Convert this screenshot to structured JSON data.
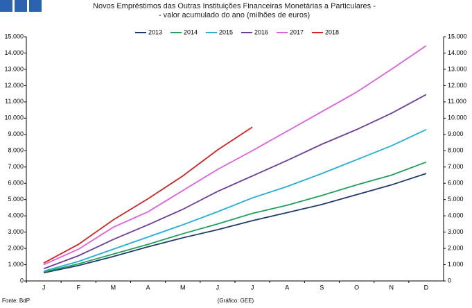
{
  "chart_data": {
    "type": "line",
    "title": "Novos Empréstimos das Outras Instituições Financeiras Monetárias a Particulares -",
    "subtitle": "- valor acumulado do ano (milhões de euros)",
    "source": "Fonte: BdP",
    "credit": "(Gráfico: GEE)",
    "categories": [
      "J",
      "F",
      "M",
      "A",
      "M",
      "J",
      "J",
      "A",
      "S",
      "O",
      "N",
      "D"
    ],
    "series": [
      {
        "name": "2013",
        "color": "#1f3a6b",
        "values": [
          500,
          950,
          1500,
          2100,
          2650,
          3150,
          3700,
          4200,
          4700,
          5300,
          5900,
          6600
        ]
      },
      {
        "name": "2014",
        "color": "#1f9e5e",
        "values": [
          550,
          1050,
          1650,
          2250,
          2900,
          3500,
          4150,
          4650,
          5250,
          5900,
          6500,
          7300
        ]
      },
      {
        "name": "2015",
        "color": "#22aed6",
        "values": [
          600,
          1200,
          1950,
          2700,
          3450,
          4250,
          5100,
          5800,
          6600,
          7450,
          8300,
          9300
        ]
      },
      {
        "name": "2016",
        "color": "#6b3d98",
        "values": [
          750,
          1550,
          2550,
          3450,
          4400,
          5500,
          6450,
          7400,
          8400,
          9300,
          10300,
          11450
        ]
      },
      {
        "name": "2017",
        "color": "#e05ee0",
        "values": [
          1000,
          1950,
          3300,
          4250,
          5550,
          6850,
          8000,
          9200,
          10400,
          11600,
          13000,
          14450
        ]
      },
      {
        "name": "2018",
        "color": "#d22222",
        "values": [
          1100,
          2250,
          3750,
          5050,
          6450,
          8050,
          9450,
          null,
          null,
          null,
          null,
          null
        ]
      }
    ],
    "ylim": [
      0,
      15000
    ],
    "yticks": [
      0,
      {
        "value": 1000,
        "label": "1.000"
      },
      {
        "value": 2000,
        "label": "2.000"
      },
      {
        "value": 3000,
        "label": "3.000"
      },
      {
        "value": 4000,
        "label": "4.000"
      },
      {
        "value": 5000,
        "label": "5.000"
      },
      {
        "value": 6000,
        "label": "6.000"
      },
      {
        "value": 7000,
        "label": "7.000"
      },
      {
        "value": 8000,
        "label": "8.000"
      },
      {
        "value": 9000,
        "label": "9.000"
      },
      {
        "value": 10000,
        "label": "10.000"
      },
      {
        "value": 11000,
        "label": "11.000"
      },
      {
        "value": 12000,
        "label": "12.000"
      },
      {
        "value": 13000,
        "label": "13.000"
      },
      {
        "value": 14000,
        "label": "14.000"
      },
      {
        "value": 15000,
        "label": "15.000"
      }
    ],
    "y2lim": [
      0,
      15000
    ],
    "y2ticks": [
      0,
      {
        "value": 1000,
        "label": "1.000"
      },
      {
        "value": 2000,
        "label": "2.000"
      },
      {
        "value": 3000,
        "label": "3.000"
      },
      {
        "value": 4000,
        "label": "4.000"
      },
      {
        "value": 5000,
        "label": "5.000"
      },
      {
        "value": 6000,
        "label": "6.000"
      },
      {
        "value": 7000,
        "label": "7.000"
      },
      {
        "value": 8000,
        "label": "8.000"
      },
      {
        "value": 9000,
        "label": "9.000"
      },
      {
        "value": 10000,
        "label": "10.000"
      },
      {
        "value": 11000,
        "label": "11.000"
      },
      {
        "value": 12000,
        "label": "12.000"
      },
      {
        "value": 13000,
        "label": "13.000"
      },
      {
        "value": 14000,
        "label": "14.000"
      },
      {
        "value": 15000,
        "label": "15.000"
      }
    ],
    "grid": false,
    "legend": "top"
  }
}
